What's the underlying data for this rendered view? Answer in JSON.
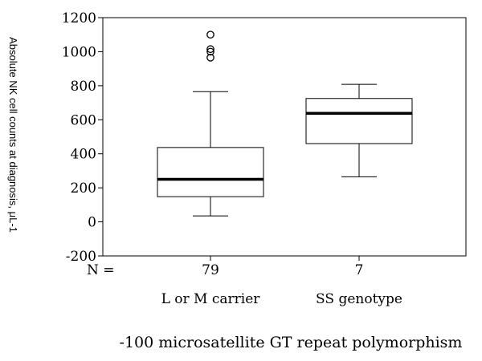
{
  "chart_data": {
    "type": "box",
    "ylabel": "Absolute NK cell counts at diagnosis, μL-1",
    "xlabel": "-100 microsatellite GT repeat polymorphism",
    "ylim": [
      -200,
      1200
    ],
    "yticks": [
      -200,
      0,
      200,
      400,
      600,
      800,
      1000,
      1200
    ],
    "n_label": "N =",
    "categories": [
      "L or M carrier",
      "SS genotype"
    ],
    "n_values": [
      "79",
      "7"
    ],
    "boxes": [
      {
        "min": 35,
        "q1": 148,
        "median": 250,
        "q3": 437,
        "max": 765,
        "outliers": [
          965,
          1000,
          1015,
          1100
        ]
      },
      {
        "min": 265,
        "q1": 460,
        "median": 638,
        "q3": 725,
        "max": 808,
        "outliers": []
      }
    ],
    "colors": {
      "axis": "#000000",
      "box_fill": "#ffffff"
    }
  }
}
